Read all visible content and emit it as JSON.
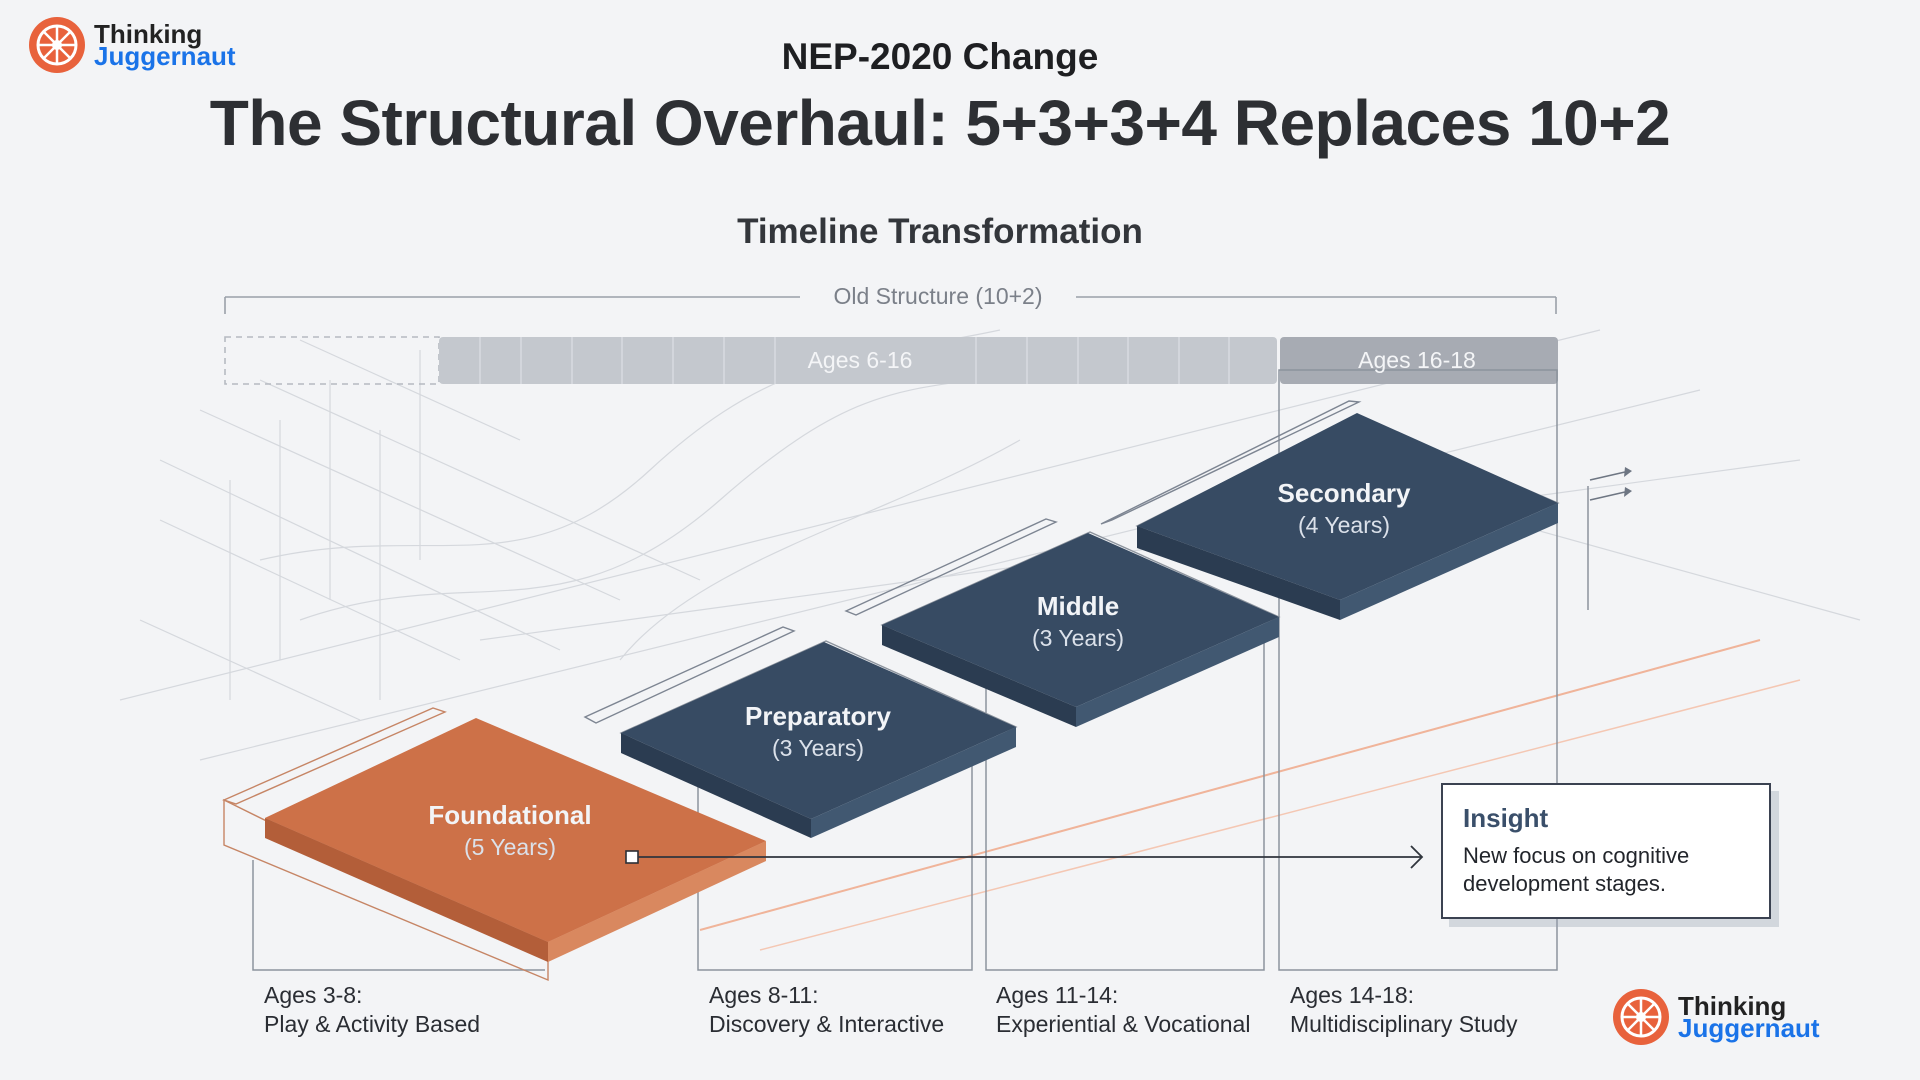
{
  "brand": {
    "word1": "Thinking",
    "word2": "Juggernaut"
  },
  "header": {
    "kicker": "NEP-2020 Change",
    "title": "The Structural Overhaul: 5+3+3+4 Replaces 10+2",
    "subtitle": "Timeline Transformation"
  },
  "old_structure": {
    "label": "Old Structure (10+2)",
    "bars": [
      {
        "label": "Ages 6-16"
      },
      {
        "label": "Ages 16-18"
      }
    ]
  },
  "stages": [
    {
      "name": "Foundational",
      "duration": "(5 Years)",
      "ages": "Ages 3-8:",
      "focus": "Play & Activity Based"
    },
    {
      "name": "Preparatory",
      "duration": "(3 Years)",
      "ages": "Ages 8-11:",
      "focus": "Discovery & Interactive"
    },
    {
      "name": "Middle",
      "duration": "(3 Years)",
      "ages": "Ages 11-14:",
      "focus": "Experiential & Vocational"
    },
    {
      "name": "Secondary",
      "duration": "(4 Years)",
      "ages": "Ages 14-18:",
      "focus": "Multidisciplinary Study"
    }
  ],
  "insight": {
    "heading": "Insight",
    "text": "New focus on cognitive development stages."
  },
  "colors": {
    "foundational": "#cd7148",
    "stage_dark": "#374b63",
    "old_bar": "#c4c8ce",
    "old_bar_dark": "#a6abb3",
    "accent_orange": "#e8623c",
    "brand_blue": "#1a73e8"
  }
}
